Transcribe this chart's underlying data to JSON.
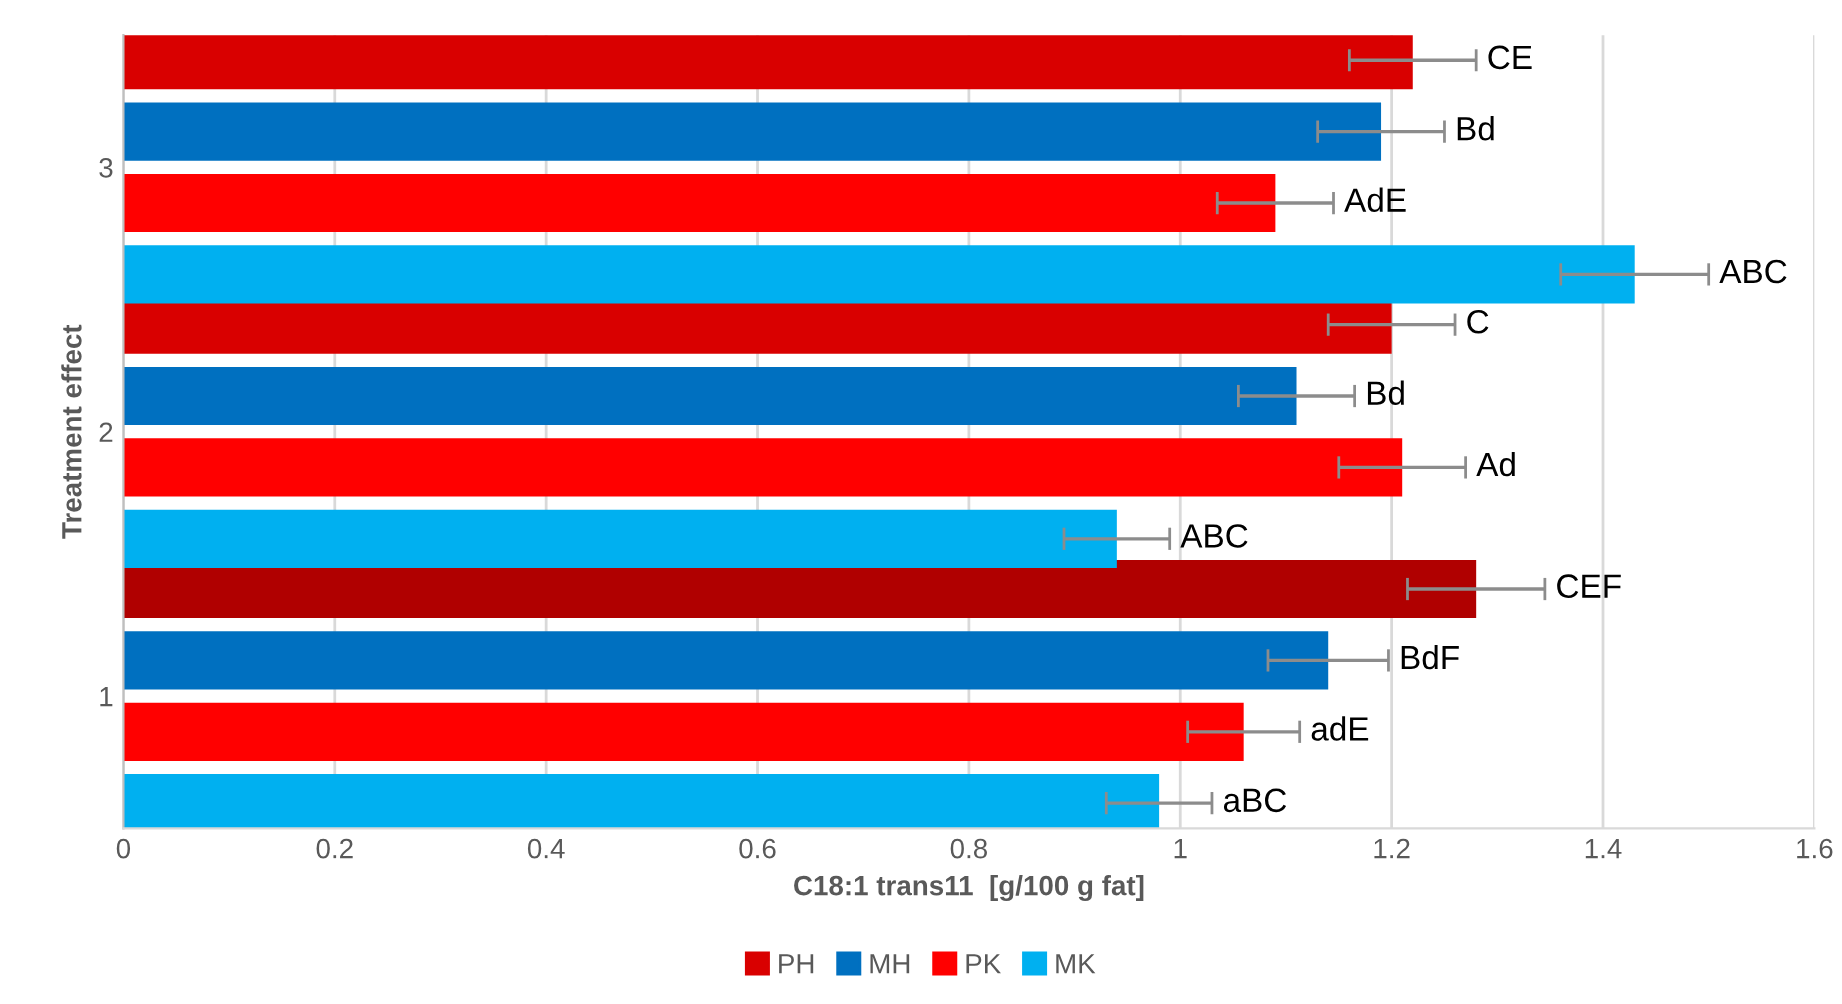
{
  "chart_data": {
    "type": "bar",
    "orientation": "horizontal",
    "categories": [
      "3",
      "2",
      "1"
    ],
    "series": [
      {
        "name": "PH",
        "color": "#d90000",
        "colors": [
          "#d90000",
          "#d90000",
          "#b00000"
        ],
        "values": [
          1.22,
          1.2,
          1.28
        ],
        "errors": [
          0.06,
          0.06,
          0.065
        ],
        "value_labels": [
          "CE",
          "C",
          "CEF"
        ]
      },
      {
        "name": "MH",
        "color": "#0070c0",
        "values": [
          1.19,
          1.11,
          1.14
        ],
        "errors": [
          0.06,
          0.055,
          0.057
        ],
        "value_labels": [
          "Bd",
          "Bd",
          "BdF"
        ]
      },
      {
        "name": "PK",
        "color": "#ff0000",
        "values": [
          1.09,
          1.21,
          1.06
        ],
        "errors": [
          0.055,
          0.06,
          0.053
        ],
        "value_labels": [
          "AdE",
          "Ad",
          "adE"
        ]
      },
      {
        "name": "MK",
        "color": "#00b0f0",
        "values": [
          1.43,
          0.94,
          0.98
        ],
        "errors": [
          0.07,
          0.05,
          0.05
        ],
        "value_labels": [
          "ABC",
          "ABC",
          "aBC"
        ]
      }
    ],
    "xlabel": "C18:1 trans11  [g/100 g fat]",
    "ylabel": "Treatment effect",
    "xlim": [
      0,
      1.6
    ],
    "xticks": [
      0,
      0.2,
      0.4,
      0.6,
      0.8,
      1,
      1.2,
      1.4,
      1.6
    ],
    "grid": "x",
    "legend": "bottom"
  }
}
